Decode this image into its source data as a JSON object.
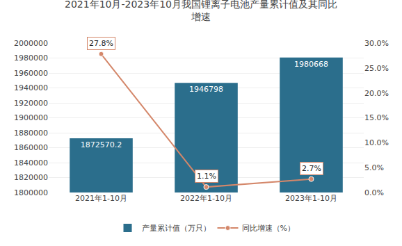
{
  "chart_data": {
    "type": "bar",
    "title": "2021年10月-2023年10月我国锂离子电池产量累计值及其同比\n增速",
    "categories": [
      "2021年1-10月",
      "2022年1-10月",
      "2023年1-10月"
    ],
    "series": [
      {
        "name": "产量累计值（万只）",
        "type": "bar",
        "color": "#2B6E8C",
        "values": [
          1872570.2,
          1946798,
          1980668
        ]
      },
      {
        "name": "同比增速（%）",
        "type": "line",
        "axis": "y2",
        "color": "#D4876A",
        "marker": "circle",
        "values": [
          27.8,
          1.1,
          2.7
        ],
        "value_labels": [
          "27.8%",
          "1.1%",
          "2.7%"
        ]
      }
    ],
    "ylim": [
      1800000,
      2000000
    ],
    "yticks": [
      1800000,
      1820000,
      1840000,
      1860000,
      1880000,
      1900000,
      1920000,
      1940000,
      1960000,
      1980000,
      2000000
    ],
    "y2lim": [
      0,
      30
    ],
    "y2ticks": [
      {
        "value": 0,
        "label": "0.0%"
      },
      {
        "value": 5,
        "label": "5.0%"
      },
      {
        "value": 10,
        "label": "10.0%"
      },
      {
        "value": 15,
        "label": "15.0%"
      },
      {
        "value": 20,
        "label": "20.0%"
      },
      {
        "value": 25,
        "label": "25.0%"
      },
      {
        "value": 30,
        "label": "30.0%"
      }
    ],
    "grid": true,
    "legend": "bottom",
    "data_labels": true
  }
}
